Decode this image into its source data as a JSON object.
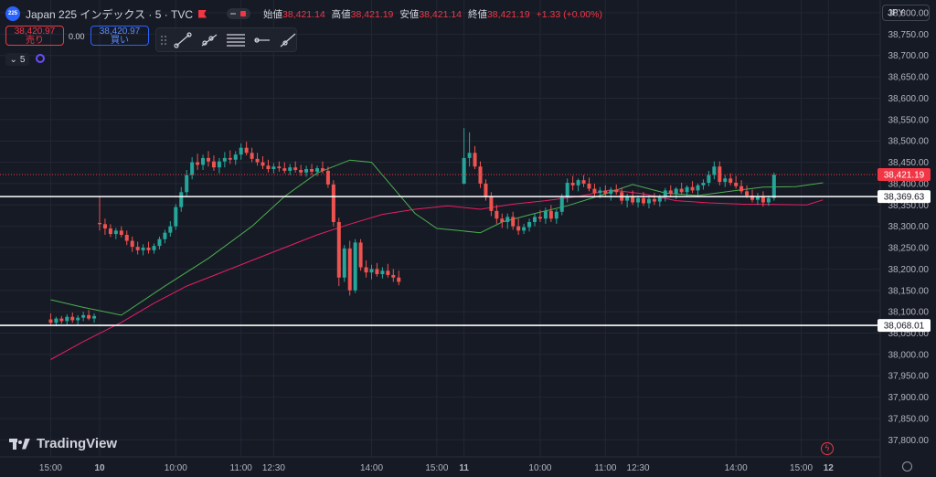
{
  "header": {
    "logo_text": "225",
    "symbol": "Japan 225 インデックス · 5 · TVC",
    "ohlc": [
      {
        "label": "始値",
        "value": "38,421.14"
      },
      {
        "label": "高値",
        "value": "38,421.19"
      },
      {
        "label": "安値",
        "value": "38,421.14"
      },
      {
        "label": "終値",
        "value": "38,421.19"
      }
    ],
    "change": "+1.33 (+0.00%)"
  },
  "trade": {
    "sell_price": "38,420.97",
    "sell_label": "売り",
    "spread": "0.00",
    "buy_price": "38,420.97",
    "buy_label": "買い"
  },
  "interval_button": "5",
  "currency": "JPY",
  "brand": "TradingView",
  "colors": {
    "up": "#26a69a",
    "down": "#ef5350",
    "ma_fast": "#4caf50",
    "ma_slow": "#e91e63",
    "price_tag": "#f23645"
  },
  "chart_data": {
    "type": "candlestick",
    "ylim": [
      37760,
      38830
    ],
    "yticks": [
      "38,800.00",
      "38,750.00",
      "38,700.00",
      "38,650.00",
      "38,600.00",
      "38,550.00",
      "38,500.00",
      "38,450.00",
      "38,400.00",
      "38,350.00",
      "38,300.00",
      "38,250.00",
      "38,200.00",
      "38,150.00",
      "38,100.00",
      "38,050.00",
      "38,000.00",
      "37,950.00",
      "37,900.00",
      "37,850.00",
      "37,800.00"
    ],
    "ytick_values": [
      38800,
      38750,
      38700,
      38650,
      38600,
      38550,
      38500,
      38450,
      38400,
      38350,
      38300,
      38250,
      38200,
      38150,
      38100,
      38050,
      38000,
      37950,
      37900,
      37850,
      37800
    ],
    "xticks": [
      {
        "label": "15:00",
        "bar": -9
      },
      {
        "label": "10",
        "bar": 0,
        "bold": true
      },
      {
        "label": "10:00",
        "bar": 14
      },
      {
        "label": "11:00",
        "bar": 26
      },
      {
        "label": "12:30",
        "bar": 32
      },
      {
        "label": "14:00",
        "bar": 50
      },
      {
        "label": "15:00",
        "bar": 62
      },
      {
        "label": "11",
        "bar": 67,
        "bold": true
      },
      {
        "label": "10:00",
        "bar": 81
      },
      {
        "label": "11:00",
        "bar": 93
      },
      {
        "label": "12:30",
        "bar": 99
      },
      {
        "label": "14:00",
        "bar": 117
      },
      {
        "label": "15:00",
        "bar": 129
      },
      {
        "label": "12",
        "bar": 134,
        "bold": true
      }
    ],
    "horizontal_lines": [
      {
        "value": 38369.63,
        "label": "38,369.63"
      },
      {
        "value": 38068.01,
        "label": "38,068.01"
      }
    ],
    "last_price": {
      "value": 38421.19,
      "label": "38,421.19"
    },
    "candles": [
      [
        38082,
        38096,
        38070,
        38074
      ],
      [
        38074,
        38088,
        38066,
        38084
      ],
      [
        38084,
        38090,
        38072,
        38078
      ],
      [
        38078,
        38094,
        38070,
        38088
      ],
      [
        38088,
        38098,
        38074,
        38080
      ],
      [
        38080,
        38092,
        38070,
        38086
      ],
      [
        38086,
        38100,
        38078,
        38092
      ],
      [
        38092,
        38104,
        38080,
        38084
      ],
      [
        38084,
        38096,
        38074,
        38090
      ],
      [
        38308,
        38370,
        38290,
        38305
      ],
      [
        38305,
        38318,
        38280,
        38295
      ],
      [
        38295,
        38305,
        38275,
        38282
      ],
      [
        38282,
        38296,
        38270,
        38290
      ],
      [
        38290,
        38300,
        38274,
        38280
      ],
      [
        38280,
        38290,
        38256,
        38266
      ],
      [
        38266,
        38276,
        38240,
        38252
      ],
      [
        38252,
        38264,
        38234,
        38244
      ],
      [
        38244,
        38258,
        38232,
        38250
      ],
      [
        38250,
        38264,
        38236,
        38244
      ],
      [
        38244,
        38260,
        38236,
        38254
      ],
      [
        38254,
        38276,
        38246,
        38270
      ],
      [
        38270,
        38292,
        38260,
        38285
      ],
      [
        38285,
        38312,
        38276,
        38300
      ],
      [
        38300,
        38352,
        38292,
        38345
      ],
      [
        38345,
        38392,
        38334,
        38380
      ],
      [
        38380,
        38432,
        38370,
        38420
      ],
      [
        38420,
        38462,
        38410,
        38450
      ],
      [
        38450,
        38470,
        38432,
        38444
      ],
      [
        38444,
        38468,
        38432,
        38460
      ],
      [
        38460,
        38476,
        38440,
        38452
      ],
      [
        38452,
        38466,
        38430,
        38438
      ],
      [
        38438,
        38460,
        38424,
        38452
      ],
      [
        38452,
        38474,
        38438,
        38460
      ],
      [
        38460,
        38478,
        38446,
        38456
      ],
      [
        38456,
        38476,
        38444,
        38468
      ],
      [
        38468,
        38494,
        38456,
        38484
      ],
      [
        38484,
        38498,
        38466,
        38472
      ],
      [
        38472,
        38484,
        38450,
        38458
      ],
      [
        38458,
        38472,
        38442,
        38450
      ],
      [
        38450,
        38464,
        38434,
        38442
      ],
      [
        38442,
        38456,
        38426,
        38434
      ],
      [
        38434,
        38448,
        38424,
        38440
      ],
      [
        38440,
        38452,
        38428,
        38436
      ],
      [
        38436,
        38450,
        38424,
        38430
      ],
      [
        38430,
        38446,
        38420,
        38438
      ],
      [
        38438,
        38452,
        38426,
        38432
      ],
      [
        38432,
        38444,
        38418,
        38426
      ],
      [
        38426,
        38442,
        38416,
        38434
      ],
      [
        38434,
        38446,
        38420,
        38428
      ],
      [
        38428,
        38442,
        38418,
        38436
      ],
      [
        38436,
        38452,
        38424,
        38430
      ],
      [
        38430,
        38440,
        38390,
        38398
      ],
      [
        38398,
        38408,
        38300,
        38310
      ],
      [
        38310,
        38320,
        38160,
        38180
      ],
      [
        38180,
        38256,
        38170,
        38248
      ],
      [
        38248,
        38266,
        38138,
        38150
      ],
      [
        38150,
        38270,
        38144,
        38262
      ],
      [
        38262,
        38270,
        38196,
        38204
      ],
      [
        38204,
        38220,
        38180,
        38192
      ],
      [
        38192,
        38210,
        38176,
        38200
      ],
      [
        38200,
        38214,
        38182,
        38188
      ],
      [
        38188,
        38204,
        38178,
        38196
      ],
      [
        38196,
        38212,
        38180,
        38186
      ],
      [
        38186,
        38200,
        38170,
        38180
      ],
      [
        38180,
        38196,
        38162,
        38170
      ],
      [
        38400,
        38530,
        38398,
        38460
      ],
      [
        38460,
        38520,
        38440,
        38472
      ],
      [
        38472,
        38488,
        38434,
        38440
      ],
      [
        38440,
        38452,
        38390,
        38400
      ],
      [
        38400,
        38410,
        38360,
        38370
      ],
      [
        38370,
        38380,
        38324,
        38336
      ],
      [
        38336,
        38350,
        38306,
        38318
      ],
      [
        38318,
        38330,
        38296,
        38310
      ],
      [
        38310,
        38330,
        38294,
        38322
      ],
      [
        38322,
        38334,
        38292,
        38300
      ],
      [
        38300,
        38318,
        38280,
        38290
      ],
      [
        38290,
        38306,
        38282,
        38298
      ],
      [
        38298,
        38318,
        38288,
        38310
      ],
      [
        38310,
        38330,
        38300,
        38322
      ],
      [
        38322,
        38338,
        38310,
        38318
      ],
      [
        38318,
        38344,
        38306,
        38336
      ],
      [
        38336,
        38350,
        38310,
        38318
      ],
      [
        38318,
        38340,
        38306,
        38334
      ],
      [
        38334,
        38376,
        38326,
        38368
      ],
      [
        38368,
        38412,
        38356,
        38402
      ],
      [
        38402,
        38418,
        38384,
        38396
      ],
      [
        38396,
        38412,
        38382,
        38408
      ],
      [
        38408,
        38420,
        38392,
        38400
      ],
      [
        38400,
        38414,
        38382,
        38388
      ],
      [
        38388,
        38400,
        38370,
        38378
      ],
      [
        38378,
        38392,
        38366,
        38384
      ],
      [
        38384,
        38396,
        38368,
        38376
      ],
      [
        38376,
        38392,
        38360,
        38386
      ],
      [
        38386,
        38398,
        38374,
        38380
      ],
      [
        38380,
        38390,
        38352,
        38360
      ],
      [
        38360,
        38376,
        38344,
        38370
      ],
      [
        38370,
        38384,
        38350,
        38356
      ],
      [
        38356,
        38372,
        38344,
        38366
      ],
      [
        38366,
        38380,
        38348,
        38354
      ],
      [
        38354,
        38372,
        38342,
        38364
      ],
      [
        38364,
        38378,
        38350,
        38358
      ],
      [
        38358,
        38374,
        38346,
        38368
      ],
      [
        38368,
        38390,
        38358,
        38384
      ],
      [
        38384,
        38396,
        38368,
        38376
      ],
      [
        38376,
        38392,
        38364,
        38388
      ],
      [
        38388,
        38402,
        38374,
        38380
      ],
      [
        38380,
        38396,
        38370,
        38392
      ],
      [
        38392,
        38406,
        38378,
        38384
      ],
      [
        38384,
        38400,
        38372,
        38396
      ],
      [
        38396,
        38410,
        38386,
        38402
      ],
      [
        38402,
        38430,
        38394,
        38420
      ],
      [
        38420,
        38452,
        38410,
        38440
      ],
      [
        38440,
        38452,
        38396,
        38404
      ],
      [
        38404,
        38420,
        38392,
        38412
      ],
      [
        38412,
        38424,
        38396,
        38402
      ],
      [
        38402,
        38418,
        38388,
        38394
      ],
      [
        38394,
        38408,
        38376,
        38382
      ],
      [
        38382,
        38396,
        38366,
        38372
      ],
      [
        38372,
        38386,
        38356,
        38362
      ],
      [
        38362,
        38378,
        38350,
        38370
      ],
      [
        38370,
        38382,
        38346,
        38356
      ],
      [
        38356,
        38372,
        38348,
        38366
      ],
      [
        38366,
        38426,
        38360,
        38421
      ]
    ],
    "ma_fast": [
      [
        -9,
        38128
      ],
      [
        -3,
        38110
      ],
      [
        4,
        38092
      ],
      [
        12,
        38160
      ],
      [
        20,
        38225
      ],
      [
        28,
        38300
      ],
      [
        34,
        38370
      ],
      [
        40,
        38425
      ],
      [
        46,
        38455
      ],
      [
        50,
        38450
      ],
      [
        54,
        38390
      ],
      [
        58,
        38330
      ],
      [
        62,
        38295
      ],
      [
        66,
        38290
      ],
      [
        70,
        38285
      ],
      [
        74,
        38310
      ],
      [
        80,
        38330
      ],
      [
        86,
        38348
      ],
      [
        92,
        38372
      ],
      [
        98,
        38398
      ],
      [
        104,
        38378
      ],
      [
        110,
        38372
      ],
      [
        116,
        38382
      ],
      [
        122,
        38392
      ],
      [
        128,
        38393
      ],
      [
        133,
        38402
      ]
    ],
    "ma_slow": [
      [
        -9,
        37988
      ],
      [
        -3,
        38030
      ],
      [
        4,
        38075
      ],
      [
        10,
        38120
      ],
      [
        16,
        38160
      ],
      [
        22,
        38190
      ],
      [
        28,
        38220
      ],
      [
        34,
        38250
      ],
      [
        40,
        38280
      ],
      [
        46,
        38305
      ],
      [
        52,
        38328
      ],
      [
        58,
        38340
      ],
      [
        64,
        38348
      ],
      [
        70,
        38340
      ],
      [
        76,
        38352
      ],
      [
        82,
        38360
      ],
      [
        88,
        38370
      ],
      [
        94,
        38385
      ],
      [
        100,
        38376
      ],
      [
        106,
        38360
      ],
      [
        112,
        38355
      ],
      [
        118,
        38352
      ],
      [
        124,
        38351
      ],
      [
        130,
        38350
      ],
      [
        133,
        38362
      ]
    ]
  }
}
